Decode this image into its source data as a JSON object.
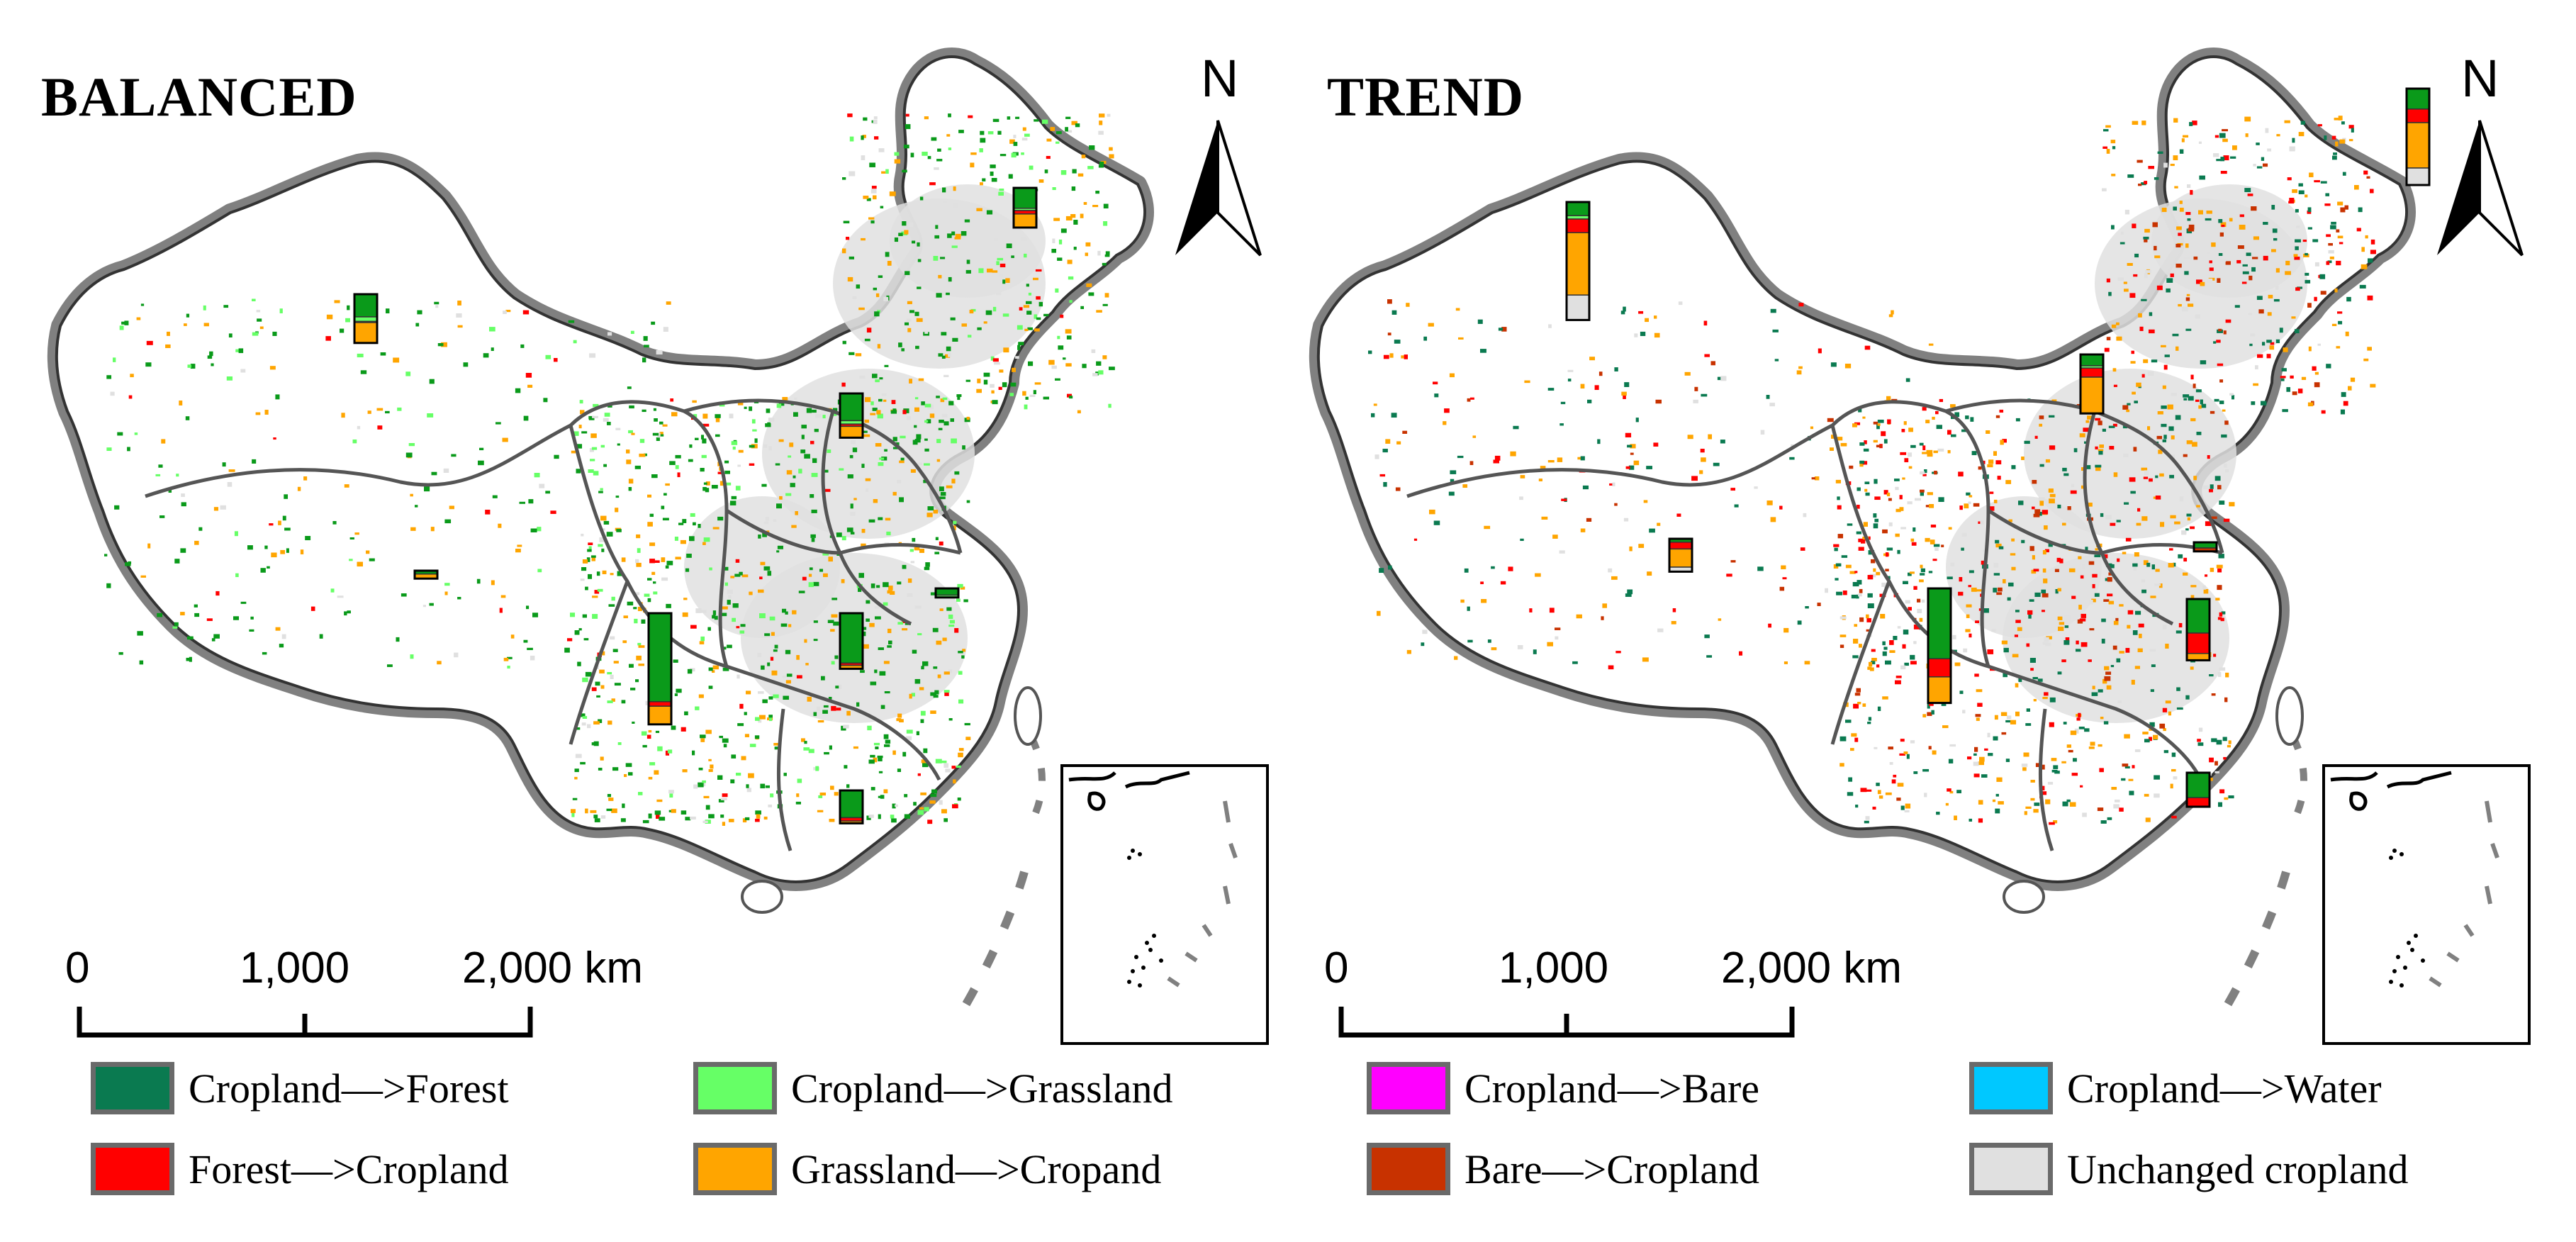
{
  "panels": [
    {
      "title": "BALANCED",
      "north": "N",
      "scale": {
        "labels": [
          "0",
          "1,000",
          "2,000 km"
        ]
      },
      "bars": [
        {
          "region": "northwest",
          "segments": [
            {
              "type": "forest",
              "value": 2
            },
            {
              "type": "grassland",
              "value": 0.4
            },
            {
              "type": "bare",
              "value": 0.1
            },
            {
              "type": "cropgain",
              "value": 1.8
            }
          ]
        },
        {
          "region": "northeast",
          "segments": [
            {
              "type": "forest",
              "value": 1.8
            },
            {
              "type": "grassland",
              "value": 0.2
            },
            {
              "type": "lossForest",
              "value": 0.3
            },
            {
              "type": "cropgain",
              "value": 1.2
            }
          ]
        },
        {
          "region": "north",
          "segments": [
            {
              "type": "forest",
              "value": 2.4
            },
            {
              "type": "grassland",
              "value": 0.3
            },
            {
              "type": "lossForest",
              "value": 0.2
            },
            {
              "type": "cropgain",
              "value": 1
            }
          ]
        },
        {
          "region": "tibet",
          "segments": [
            {
              "type": "forest",
              "value": 0.3
            },
            {
              "type": "cropgain",
              "value": 0.4
            }
          ]
        },
        {
          "region": "east",
          "segments": [
            {
              "type": "forest",
              "value": 0.6
            },
            {
              "type": "grassland",
              "value": 0.2
            }
          ]
        },
        {
          "region": "central",
          "segments": [
            {
              "type": "forest",
              "value": 4.4
            },
            {
              "type": "lossForest",
              "value": 0.2
            },
            {
              "type": "cropgain",
              "value": 0.3
            }
          ]
        },
        {
          "region": "southwest",
          "segments": [
            {
              "type": "forest",
              "value": 7.8
            },
            {
              "type": "lossForest",
              "value": 0.4
            },
            {
              "type": "cropgain",
              "value": 1.6
            }
          ]
        },
        {
          "region": "south",
          "segments": [
            {
              "type": "forest",
              "value": 2.4
            },
            {
              "type": "lossForest",
              "value": 0.3
            },
            {
              "type": "cropgain",
              "value": 0.2
            }
          ]
        }
      ]
    },
    {
      "title": "TREND",
      "north": "N",
      "scale": {
        "labels": [
          "0",
          "1,000",
          "2,000 km"
        ]
      },
      "bars": [
        {
          "region": "northwest",
          "segments": [
            {
              "type": "forest",
              "value": 1.2
            },
            {
              "type": "grassland",
              "value": 0.3
            },
            {
              "type": "lossForest",
              "value": 1.2
            },
            {
              "type": "cropgain",
              "value": 5.5
            },
            {
              "type": "unchanged",
              "value": 2.2
            }
          ]
        },
        {
          "region": "northeast",
          "segments": [
            {
              "type": "forest",
              "value": 1.8
            },
            {
              "type": "lossForest",
              "value": 1.2
            },
            {
              "type": "cropgain",
              "value": 4
            },
            {
              "type": "unchanged",
              "value": 1.5
            }
          ]
        },
        {
          "region": "north",
          "segments": [
            {
              "type": "forest",
              "value": 1
            },
            {
              "type": "grassland",
              "value": 0.2
            },
            {
              "type": "lossForest",
              "value": 0.8
            },
            {
              "type": "cropgain",
              "value": 3.2
            }
          ]
        },
        {
          "region": "tibet",
          "segments": [
            {
              "type": "forest",
              "value": 0.3
            },
            {
              "type": "lossForest",
              "value": 0.6
            },
            {
              "type": "cropgain",
              "value": 1.6
            },
            {
              "type": "unchanged",
              "value": 0.4
            }
          ]
        },
        {
          "region": "east",
          "segments": [
            {
              "type": "forest",
              "value": 0.5
            },
            {
              "type": "lossBare",
              "value": 0.3
            }
          ]
        },
        {
          "region": "central",
          "segments": [
            {
              "type": "forest",
              "value": 3
            },
            {
              "type": "lossForest",
              "value": 1.8
            },
            {
              "type": "cropgain",
              "value": 0.6
            }
          ]
        },
        {
          "region": "southwest",
          "segments": [
            {
              "type": "forest",
              "value": 6.2
            },
            {
              "type": "lossForest",
              "value": 1.6
            },
            {
              "type": "cropgain",
              "value": 2.3
            }
          ]
        },
        {
          "region": "south",
          "segments": [
            {
              "type": "forest",
              "value": 2.2
            },
            {
              "type": "lossForest",
              "value": 0.8
            }
          ]
        }
      ]
    }
  ],
  "legend": {
    "left": [
      {
        "label": "Cropland—>Forest",
        "color": "#0a7a50"
      },
      {
        "label": "Cropland—>Grassland",
        "color": "#66ff66"
      },
      {
        "label": "Forest—>Cropland",
        "color": "#ff0000"
      },
      {
        "label": "Grassland—>Cropand",
        "color": "#ffa500"
      }
    ],
    "right": [
      {
        "label": "Cropland—>Bare",
        "color": "#ff00ff"
      },
      {
        "label": "Cropland—>Water",
        "color": "#00c8ff"
      },
      {
        "label": "Bare—>Cropland",
        "color": "#c83200"
      },
      {
        "label": "Unchanged cropland",
        "color": "#e0e0e0"
      }
    ]
  },
  "colors": {
    "forest": "#0a9a1a",
    "grassland": "#66ff66",
    "lossForest": "#ff0000",
    "lossBare": "#c83200",
    "cropgain": "#ffa500",
    "unchanged": "#e0e0e0",
    "border": "#808080",
    "provinceBorder": "#555555"
  }
}
